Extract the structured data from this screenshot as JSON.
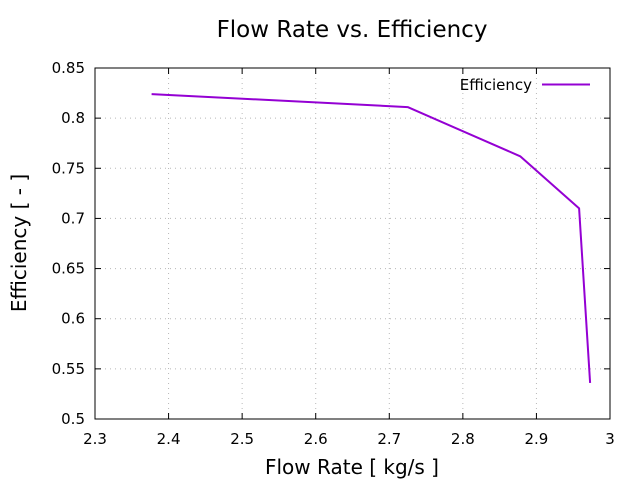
{
  "chart_data": {
    "type": "line",
    "title": "Flow Rate  vs. Efficiency",
    "xlabel": "Flow Rate [ kg/s ]",
    "ylabel": "Efficiency [ - ]",
    "xlim": [
      2.3,
      3.0
    ],
    "ylim": [
      0.5,
      0.85
    ],
    "xticks": [
      "2.3",
      "2.4",
      "2.5",
      "2.6",
      "2.7",
      "2.8",
      "2.9",
      "3"
    ],
    "yticks": [
      "0.5",
      "0.55",
      "0.6",
      "0.65",
      "0.7",
      "0.75",
      "0.8",
      "0.85"
    ],
    "grid": true,
    "legend_position": "top-right",
    "series": [
      {
        "name": "Efficiency",
        "color": "#9400d3",
        "x": [
          2.377,
          2.725,
          2.878,
          2.958,
          2.973
        ],
        "y": [
          0.824,
          0.811,
          0.762,
          0.71,
          0.536
        ]
      }
    ]
  }
}
